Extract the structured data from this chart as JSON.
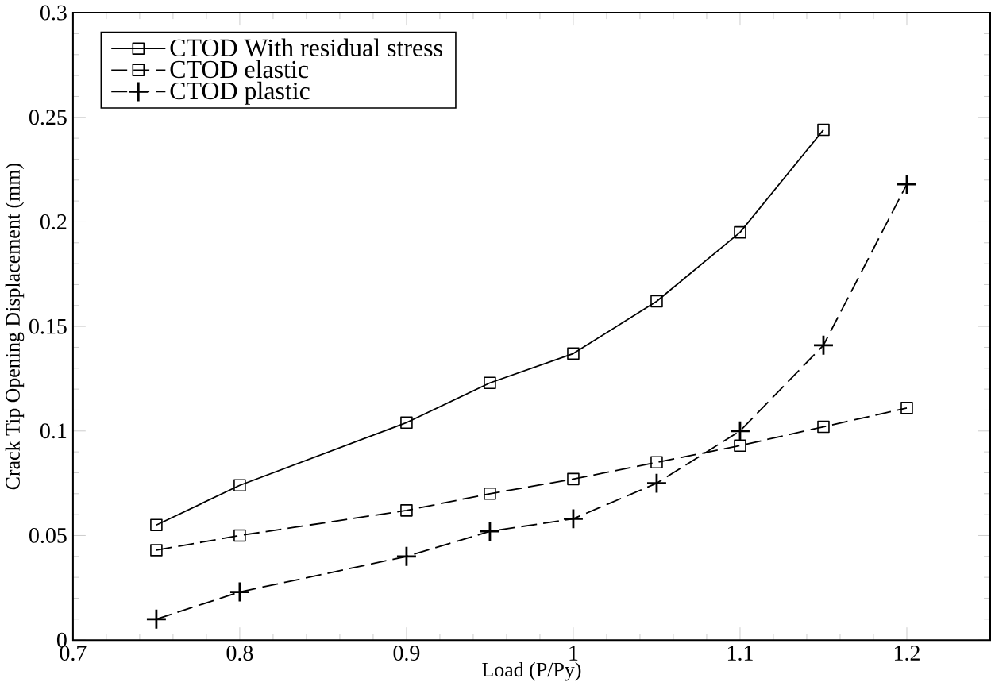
{
  "chart_data": {
    "type": "line",
    "xlabel": "Load (P/Py)",
    "ylabel": "Crack Tip Opening Displacement (mm)",
    "xlim": [
      0.7,
      1.25
    ],
    "ylim": [
      0,
      0.3
    ],
    "xticks": [
      0.7,
      0.8,
      0.9,
      1,
      1.1,
      1.2
    ],
    "yticks": [
      0,
      0.05,
      0.1,
      0.15,
      0.2,
      0.25,
      0.3
    ],
    "grid": false,
    "legend": "top left",
    "series": [
      {
        "name": "CTOD With residual stress",
        "color": "#000000",
        "marker": "square",
        "line_style": "solid",
        "x": [
          0.75,
          0.8,
          0.9,
          0.95,
          1.0,
          1.05,
          1.1,
          1.15
        ],
        "values": [
          0.055,
          0.074,
          0.104,
          0.123,
          0.137,
          0.162,
          0.195,
          0.244
        ]
      },
      {
        "name": "CTOD elastic",
        "color": "#000000",
        "marker": "square",
        "line_style": "dashed",
        "x": [
          0.75,
          0.8,
          0.9,
          0.95,
          1.0,
          1.05,
          1.1,
          1.15,
          1.2
        ],
        "values": [
          0.043,
          0.05,
          0.062,
          0.07,
          0.077,
          0.085,
          0.093,
          0.102,
          0.111
        ]
      },
      {
        "name": "CTOD plastic",
        "color": "#000000",
        "marker": "cross",
        "line_style": "dashed",
        "x": [
          0.75,
          0.8,
          0.9,
          0.95,
          1.0,
          1.05,
          1.1,
          1.15,
          1.2
        ],
        "values": [
          0.01,
          0.023,
          0.04,
          0.052,
          0.058,
          0.075,
          0.1,
          0.141,
          0.218
        ]
      }
    ]
  }
}
